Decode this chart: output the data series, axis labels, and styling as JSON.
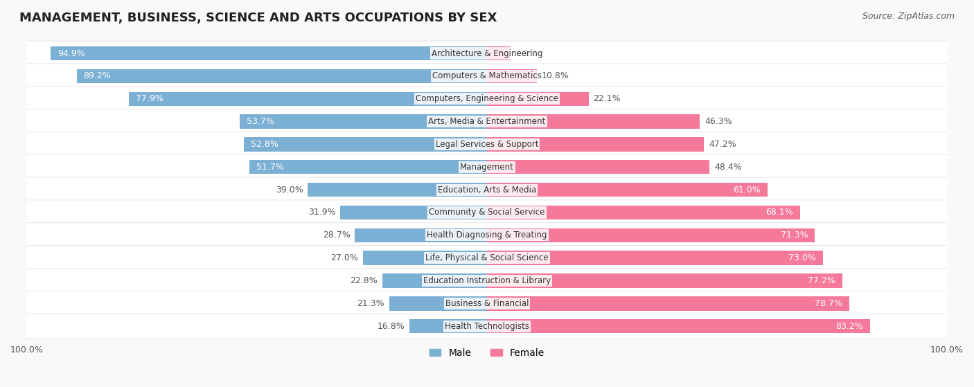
{
  "title": "MANAGEMENT, BUSINESS, SCIENCE AND ARTS OCCUPATIONS BY SEX",
  "source": "Source: ZipAtlas.com",
  "categories": [
    "Architecture & Engineering",
    "Computers & Mathematics",
    "Computers, Engineering & Science",
    "Arts, Media & Entertainment",
    "Legal Services & Support",
    "Management",
    "Education, Arts & Media",
    "Community & Social Service",
    "Health Diagnosing & Treating",
    "Life, Physical & Social Science",
    "Education Instruction & Library",
    "Business & Financial",
    "Health Technologists"
  ],
  "male_pct": [
    94.9,
    89.2,
    77.9,
    53.7,
    52.8,
    51.7,
    39.0,
    31.9,
    28.7,
    27.0,
    22.8,
    21.3,
    16.8
  ],
  "female_pct": [
    5.1,
    10.8,
    22.1,
    46.3,
    47.2,
    48.4,
    61.0,
    68.1,
    71.3,
    73.0,
    77.2,
    78.7,
    83.2
  ],
  "male_color": "#7bafd4",
  "female_color": "#f4799a",
  "bg_color": "#f9f9f9",
  "row_bg_color": "#ffffff",
  "label_color_dark": "#555555",
  "label_color_white": "#ffffff",
  "title_fontsize": 13,
  "source_fontsize": 9,
  "bar_label_fontsize": 9,
  "category_fontsize": 8.5,
  "legend_fontsize": 10
}
